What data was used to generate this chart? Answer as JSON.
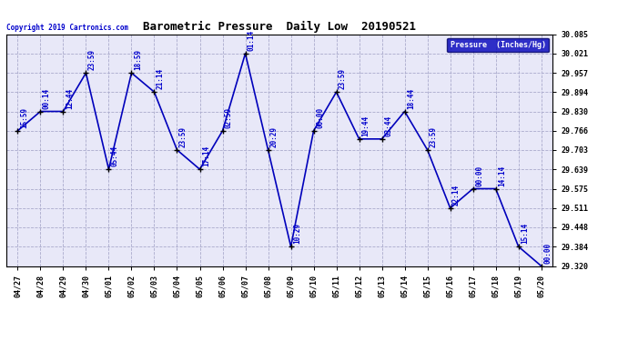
{
  "title": "Barometric Pressure  Daily Low  20190521",
  "copyright": "Copyright 2019 Cartronics.com",
  "legend_label": "Pressure  (Inches/Hg)",
  "dates": [
    "04/27",
    "04/28",
    "04/29",
    "04/30",
    "05/01",
    "05/02",
    "05/03",
    "05/04",
    "05/05",
    "05/06",
    "05/07",
    "05/08",
    "05/09",
    "05/10",
    "05/11",
    "05/12",
    "05/13",
    "05/14",
    "05/15",
    "05/16",
    "05/17",
    "05/18",
    "05/19",
    "05/20"
  ],
  "values": [
    29.766,
    29.83,
    29.83,
    29.957,
    29.639,
    29.957,
    29.894,
    29.703,
    29.639,
    29.766,
    30.021,
    29.703,
    29.384,
    29.766,
    29.894,
    29.739,
    29.739,
    29.83,
    29.703,
    29.511,
    29.575,
    29.575,
    29.384,
    29.32
  ],
  "time_labels": [
    "15:59",
    "00:14",
    "12:44",
    "23:59",
    "05:44",
    "18:59",
    "21:14",
    "23:59",
    "17:14",
    "02:59",
    "01:14",
    "20:29",
    "10:29",
    "00:00",
    "23:59",
    "19:44",
    "03:44",
    "18:44",
    "23:59",
    "22:14",
    "00:00",
    "14:14",
    "15:14",
    "00:00"
  ],
  "ylim": [
    29.32,
    30.085
  ],
  "ytick_vals": [
    29.32,
    29.384,
    29.448,
    29.511,
    29.575,
    29.639,
    29.703,
    29.766,
    29.83,
    29.894,
    29.957,
    30.021,
    30.085
  ],
  "line_color": "#0000bb",
  "marker_color": "#000000",
  "outer_bg": "#ffffff",
  "plot_bg_color": "#e8e8f8",
  "grid_color": "#aaaacc",
  "title_color": "#000000",
  "label_color": "#0000cc",
  "legend_bg": "#0000bb",
  "legend_text_color": "#ffffff"
}
